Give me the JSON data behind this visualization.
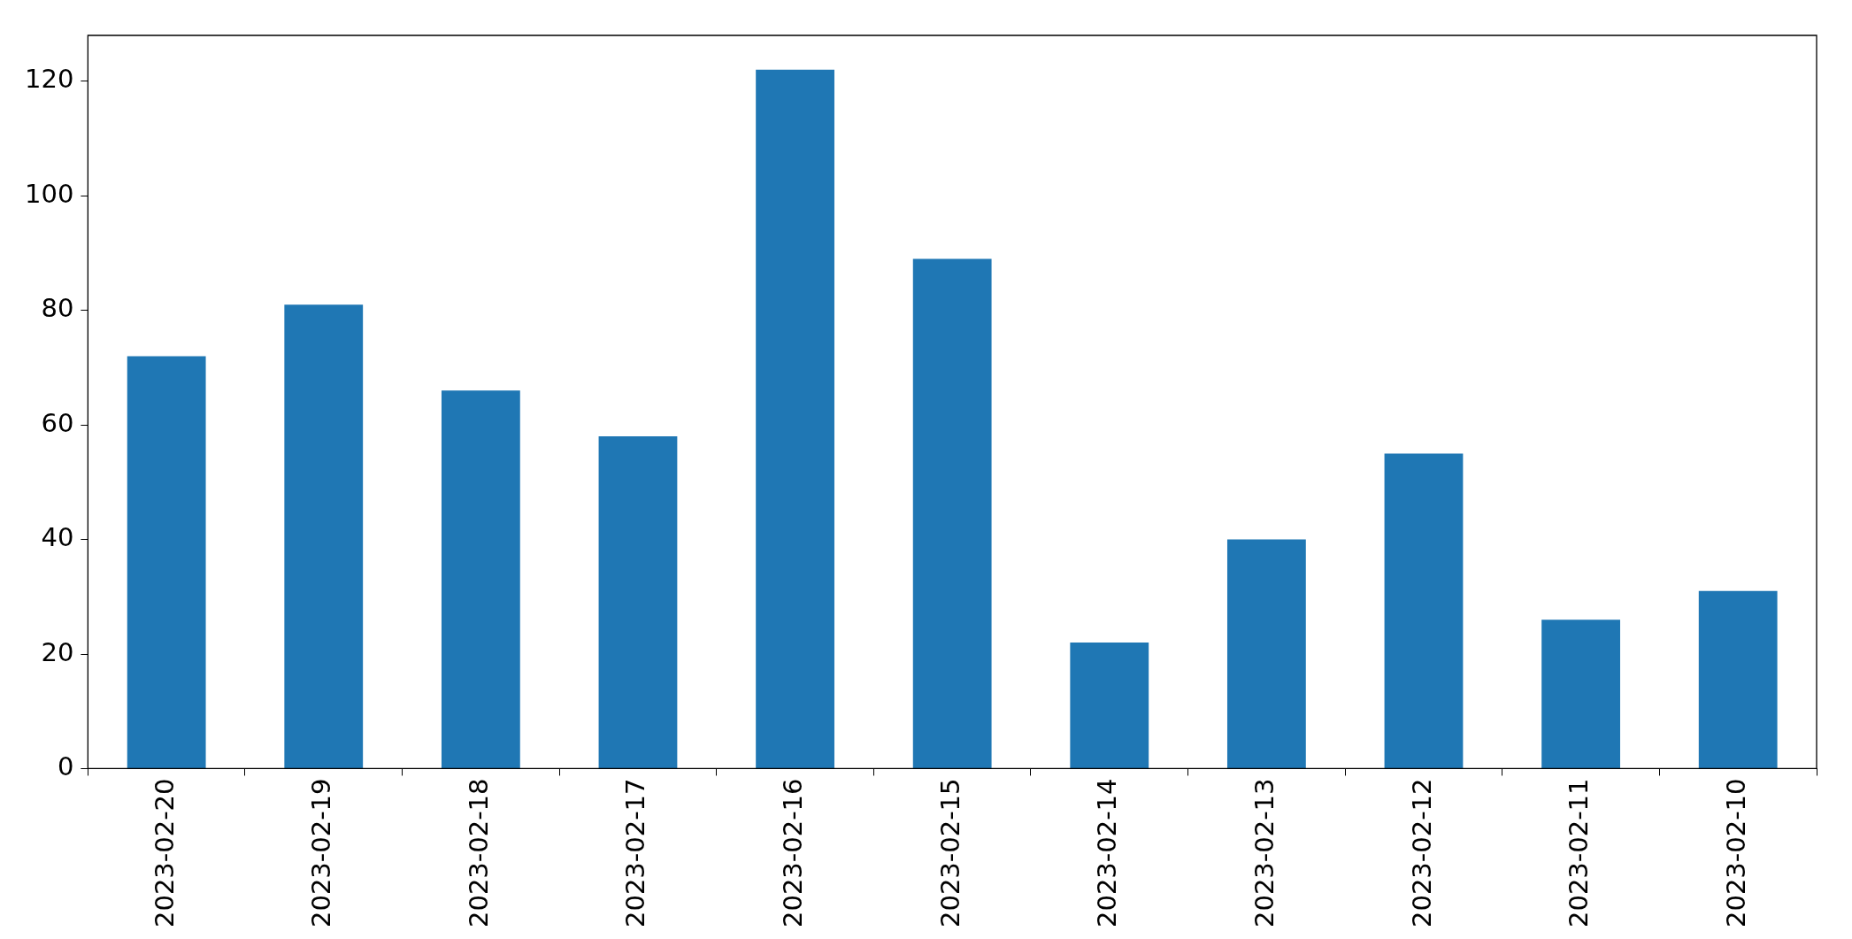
{
  "chart_data": {
    "type": "bar",
    "categories": [
      "2023-02-20",
      "2023-02-19",
      "2023-02-18",
      "2023-02-17",
      "2023-02-16",
      "2023-02-15",
      "2023-02-14",
      "2023-02-13",
      "2023-02-12",
      "2023-02-11",
      "2023-02-10"
    ],
    "values": [
      72,
      81,
      66,
      58,
      122,
      89,
      22,
      40,
      55,
      26,
      31
    ],
    "color": "#1f77b4",
    "ylim": [
      0,
      128
    ],
    "yticks": [
      0,
      20,
      40,
      60,
      80,
      100,
      120
    ],
    "grid": false,
    "legend": false
  }
}
